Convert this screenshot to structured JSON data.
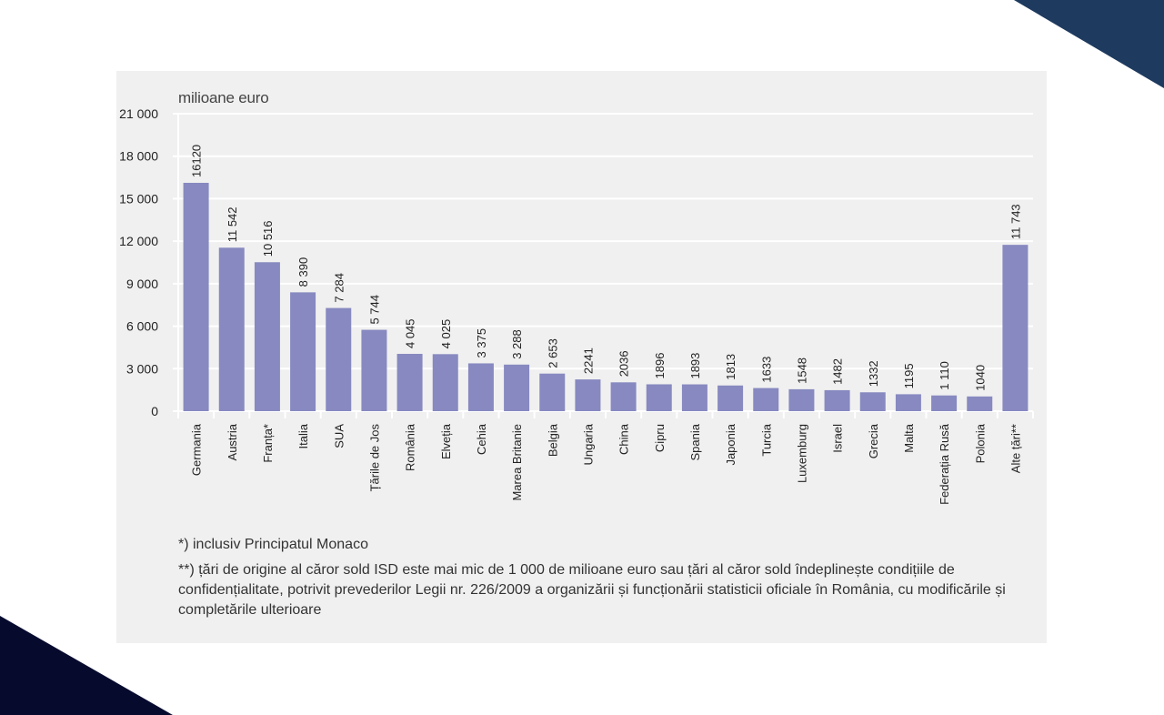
{
  "colors": {
    "bar": "#8789c0",
    "grid": "#ffffff",
    "panel": "#f0f0f0",
    "corner_top_right": "#1e3a5f",
    "corner_bottom_left": "#060b2e"
  },
  "chart_data": {
    "type": "bar",
    "title": "",
    "unit_label": "milioane euro",
    "xlabel": "",
    "ylabel": "milioane euro",
    "ylim": [
      0,
      21000
    ],
    "yticks": [
      0,
      3000,
      6000,
      9000,
      12000,
      15000,
      18000,
      21000
    ],
    "ytick_labels": [
      "0",
      "3 000",
      "6 000",
      "9 000",
      "12 000",
      "15 000",
      "18 000",
      "21 000"
    ],
    "grid": true,
    "legend": "none",
    "categories": [
      "Germania",
      "Austria",
      "Franța*",
      "Italia",
      "SUA",
      "Țările de Jos",
      "România",
      "Elveția",
      "Cehia",
      "Marea Britanie",
      "Belgia",
      "Ungaria",
      "China",
      "Cipru",
      "Spania",
      "Japonia",
      "Turcia",
      "Luxemburg",
      "Israel",
      "Grecia",
      "Malta",
      "Federația Rusă",
      "Polonia",
      "Alte țări**"
    ],
    "values": [
      16120,
      11542,
      10516,
      8390,
      7284,
      5744,
      4045,
      4025,
      3375,
      3288,
      2653,
      2241,
      2036,
      1896,
      1893,
      1813,
      1633,
      1548,
      1482,
      1332,
      1195,
      1110,
      1040,
      11743
    ],
    "value_labels": [
      "16120",
      "11 542",
      "10 516",
      "8 390",
      "7 284",
      "5 744",
      "4 045",
      "4 025",
      "3 375",
      "3 288",
      "2 653",
      "2241",
      "2036",
      "1896",
      "1893",
      "1813",
      "1633",
      "1548",
      "1482",
      "1332",
      "1195",
      "1 110",
      "1040",
      "11 743"
    ]
  },
  "footnotes": {
    "note1": "*) inclusiv Principatul Monaco",
    "note2": "**) țări de origine al căror sold ISD este mai mic de 1 000 de milioane euro sau țări al căror sold îndeplinește condițiile de confidențialitate, potrivit prevederilor Legii nr. 226/2009 a organizării și funcționării statisticii oficiale în România, cu modificările și completările ulterioare"
  }
}
